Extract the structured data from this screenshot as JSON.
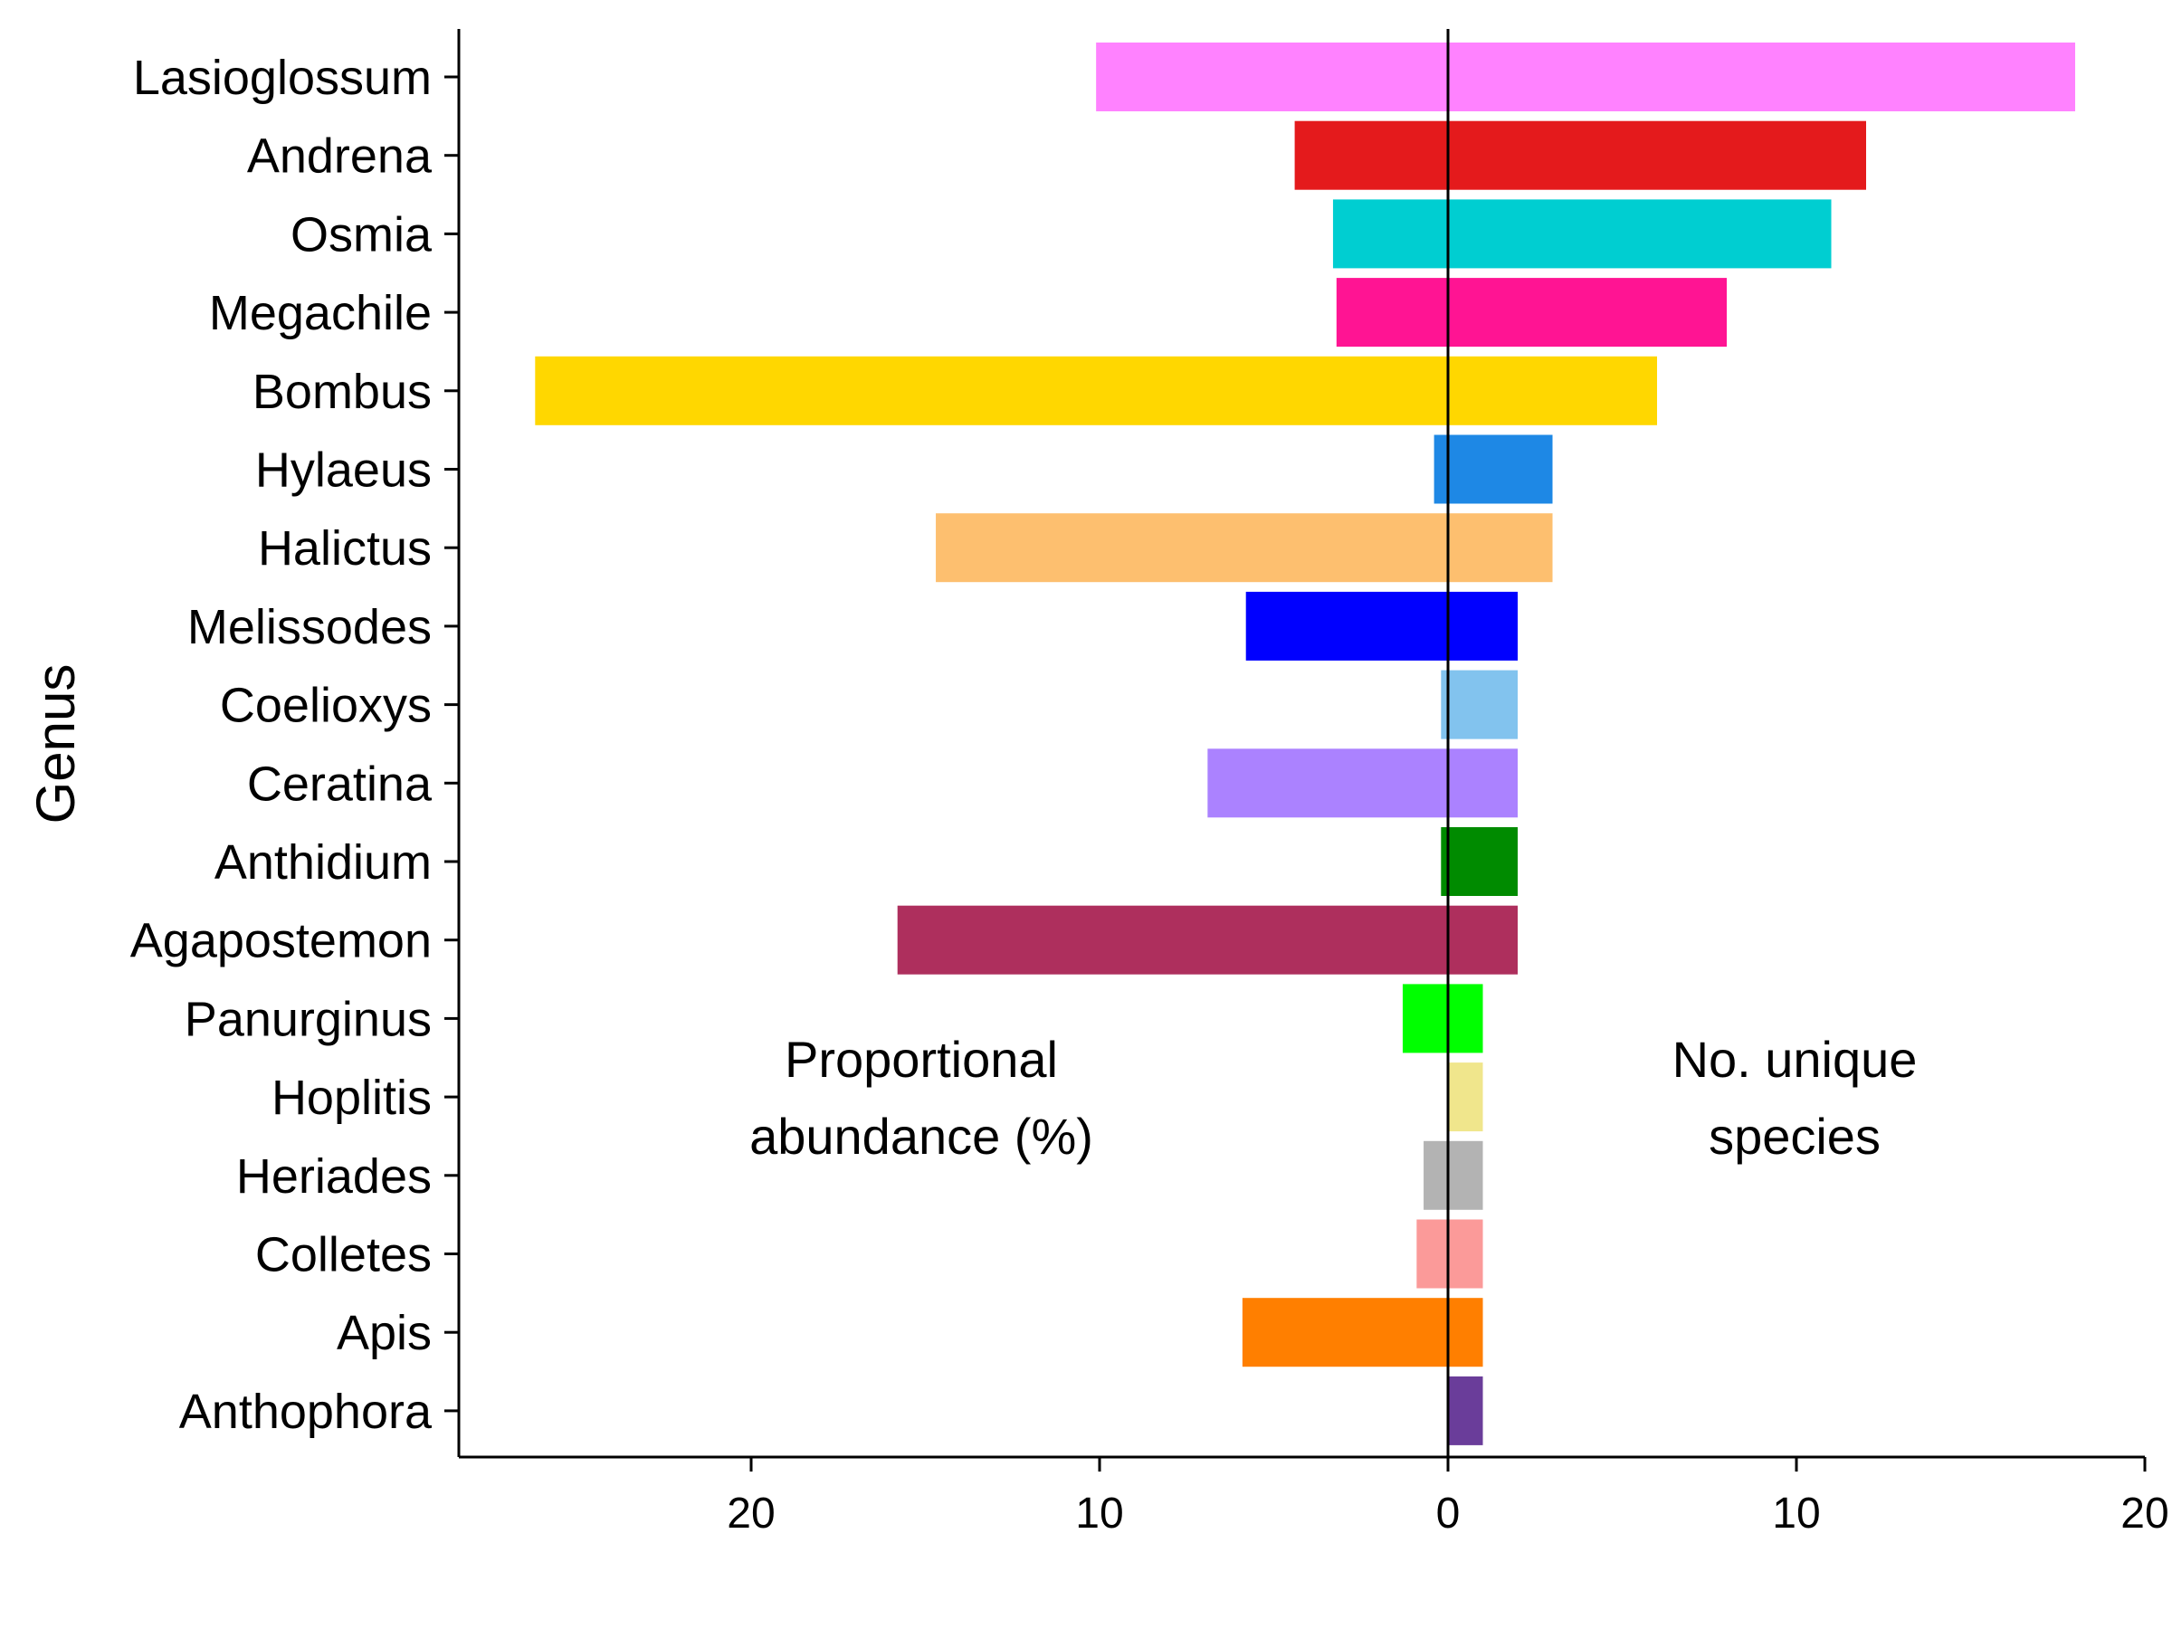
{
  "chart_data": {
    "type": "bar",
    "orientation": "horizontal",
    "layout": "back-to-back",
    "title": "",
    "ylabel": "Genus",
    "xlabel": "",
    "x_ticks": [
      20,
      10,
      0,
      10,
      20
    ],
    "x_tick_values": [
      -20,
      -10,
      0,
      10,
      20
    ],
    "xlim": [
      -28.5,
      20
    ],
    "categories": [
      "Lasioglossum",
      "Andrena",
      "Osmia",
      "Megachile",
      "Bombus",
      "Hylaeus",
      "Halictus",
      "Melissodes",
      "Coelioxys",
      "Ceratina",
      "Anthidium",
      "Agapostemon",
      "Panurginus",
      "Hoplitis",
      "Heriades",
      "Colletes",
      "Apis",
      "Anthophora"
    ],
    "colors": [
      "#FF82FF",
      "#E41A1C",
      "#00CED1",
      "#FF1493",
      "#FFD700",
      "#1E88E5",
      "#FDBF6F",
      "#0000FF",
      "#82C3EE",
      "#AB82FF",
      "#008B00",
      "#AE2F5D",
      "#00FF00",
      "#F0E68C",
      "#B3B3B3",
      "#FB9A99",
      "#FF7F00",
      "#6A3D9A"
    ],
    "series": [
      {
        "side": "left",
        "values": [
          10.1,
          4.4,
          3.3,
          3.2,
          26.2,
          0.4,
          14.7,
          5.8,
          0.2,
          6.9,
          0.2,
          15.8,
          1.3,
          0.0,
          0.7,
          0.9,
          5.9,
          0.0
        ]
      },
      {
        "side": "right",
        "values": [
          18,
          12,
          11,
          8,
          6,
          3,
          3,
          2,
          2,
          2,
          2,
          2,
          1,
          1,
          1,
          1,
          1,
          1
        ]
      }
    ],
    "annotations": [
      {
        "lines": [
          "Proportional",
          "abundance (%)"
        ],
        "side": "left"
      },
      {
        "lines": [
          "No. unique",
          "species"
        ],
        "side": "right"
      }
    ],
    "grid": false,
    "legend": "none"
  }
}
